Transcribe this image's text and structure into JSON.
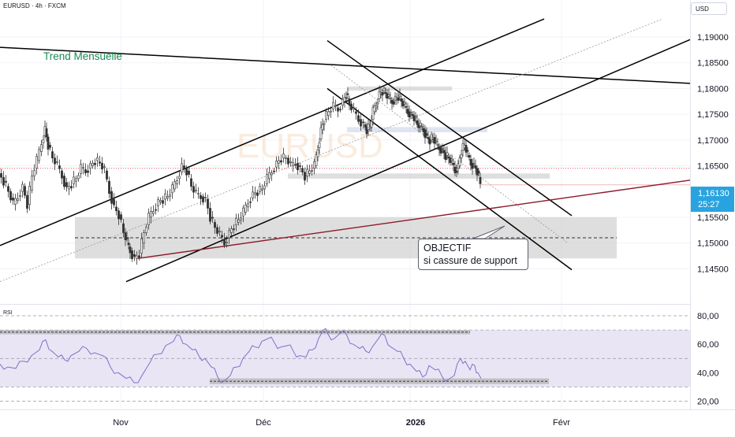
{
  "header": {
    "symbol_title": "EURUSD · 4h · FXCM",
    "currency_button": "USD"
  },
  "price_badge": {
    "price": "1,16130",
    "countdown": "25:27"
  },
  "annotations": {
    "trend_label": "Trend Mensuelle",
    "callout_line1": "OBJECTIF",
    "callout_line2": "si cassure de support",
    "watermark": "EURUSD"
  },
  "rsi_label": "RSI",
  "colors": {
    "candle": "#333333",
    "trend_line": "#000000",
    "support_line": "#8b1a2c",
    "rsi_line": "#7e72c6",
    "rsi_band": "#e9e5f5",
    "zone_fill": "#c8c8c8",
    "badge": "#29a3e0",
    "trend_label": "#1b8a52"
  },
  "chart_data": [
    {
      "type": "candlestick",
      "title": "EURUSD · 4h · FXCM",
      "x_tick_labels": [
        "Nov",
        "Déc",
        "2026",
        "Févr"
      ],
      "y_tick_labels": [
        "1,19000",
        "1,18500",
        "1,18000",
        "1,17500",
        "1,17000",
        "1,16500",
        "1,15500",
        "1,15000",
        "1,14500"
      ],
      "ylim": [
        1.1425,
        1.1935
      ],
      "current_price": 1.1613,
      "price_path": [
        [
          0,
          1.1635
        ],
        [
          6,
          1.162
        ],
        [
          12,
          1.16
        ],
        [
          18,
          1.1575
        ],
        [
          24,
          1.159
        ],
        [
          30,
          1.161
        ],
        [
          36,
          1.1575
        ],
        [
          42,
          1.163
        ],
        [
          48,
          1.166
        ],
        [
          54,
          1.1695
        ],
        [
          58,
          1.1722
        ],
        [
          62,
          1.169
        ],
        [
          68,
          1.1665
        ],
        [
          74,
          1.165
        ],
        [
          80,
          1.163
        ],
        [
          86,
          1.1605
        ],
        [
          92,
          1.1615
        ],
        [
          98,
          1.1625
        ],
        [
          104,
          1.1645
        ],
        [
          110,
          1.164
        ],
        [
          116,
          1.165
        ],
        [
          122,
          1.166
        ],
        [
          128,
          1.1655
        ],
        [
          134,
          1.164
        ],
        [
          140,
          1.16
        ],
        [
          146,
          1.157
        ],
        [
          152,
          1.1555
        ],
        [
          158,
          1.152
        ],
        [
          162,
          1.15
        ],
        [
          166,
          1.1485
        ],
        [
          172,
          1.147
        ],
        [
          178,
          1.148
        ],
        [
          184,
          1.152
        ],
        [
          190,
          1.155
        ],
        [
          196,
          1.1565
        ],
        [
          202,
          1.158
        ],
        [
          208,
          1.1585
        ],
        [
          214,
          1.159
        ],
        [
          220,
          1.1605
        ],
        [
          226,
          1.1625
        ],
        [
          232,
          1.165
        ],
        [
          238,
          1.164
        ],
        [
          244,
          1.161
        ],
        [
          250,
          1.1595
        ],
        [
          256,
          1.159
        ],
        [
          262,
          1.1585
        ],
        [
          268,
          1.155
        ],
        [
          274,
          1.153
        ],
        [
          280,
          1.1515
        ],
        [
          286,
          1.15
        ],
        [
          292,
          1.152
        ],
        [
          298,
          1.1535
        ],
        [
          304,
          1.1545
        ],
        [
          310,
          1.156
        ],
        [
          316,
          1.158
        ],
        [
          322,
          1.1595
        ],
        [
          328,
          1.16
        ],
        [
          334,
          1.1605
        ],
        [
          340,
          1.1625
        ],
        [
          346,
          1.164
        ],
        [
          352,
          1.1655
        ],
        [
          358,
          1.1665
        ],
        [
          364,
          1.1665
        ],
        [
          370,
          1.165
        ],
        [
          376,
          1.1655
        ],
        [
          382,
          1.1645
        ],
        [
          388,
          1.163
        ],
        [
          394,
          1.164
        ],
        [
          400,
          1.165
        ],
        [
          404,
          1.1685
        ],
        [
          408,
          1.172
        ],
        [
          412,
          1.174
        ],
        [
          418,
          1.1755
        ],
        [
          424,
          1.1765
        ],
        [
          430,
          1.176
        ],
        [
          436,
          1.1775
        ],
        [
          440,
          1.179
        ],
        [
          444,
          1.177
        ],
        [
          450,
          1.1755
        ],
        [
          456,
          1.174
        ],
        [
          462,
          1.173
        ],
        [
          466,
          1.172
        ],
        [
          470,
          1.1725
        ],
        [
          474,
          1.1755
        ],
        [
          478,
          1.177
        ],
        [
          482,
          1.179
        ],
        [
          486,
          1.1795
        ],
        [
          490,
          1.179
        ],
        [
          494,
          1.178
        ],
        [
          498,
          1.1775
        ],
        [
          502,
          1.178
        ],
        [
          506,
          1.1785
        ],
        [
          510,
          1.1775
        ],
        [
          514,
          1.1765
        ],
        [
          518,
          1.1755
        ],
        [
          522,
          1.175
        ],
        [
          526,
          1.1745
        ],
        [
          530,
          1.173
        ],
        [
          534,
          1.1725
        ],
        [
          538,
          1.172
        ],
        [
          542,
          1.1705
        ],
        [
          546,
          1.17
        ],
        [
          550,
          1.1705
        ],
        [
          554,
          1.169
        ],
        [
          558,
          1.1685
        ],
        [
          562,
          1.168
        ],
        [
          566,
          1.167
        ],
        [
          570,
          1.1665
        ],
        [
          574,
          1.1655
        ],
        [
          578,
          1.164
        ],
        [
          582,
          1.165
        ],
        [
          586,
          1.168
        ],
        [
          590,
          1.169
        ],
        [
          594,
          1.167
        ],
        [
          598,
          1.1655
        ],
        [
          602,
          1.165
        ],
        [
          606,
          1.164
        ],
        [
          610,
          1.1615
        ]
      ],
      "trend_lines": [
        {
          "name": "Trend Mensuelle",
          "from": [
            0,
            1.188
          ],
          "to": [
            875,
            1.181
          ],
          "color": "#000000"
        },
        {
          "name": "channel-upper",
          "from": [
            0,
            1.1495
          ],
          "to": [
            690,
            1.1935
          ],
          "color": "#000000"
        },
        {
          "name": "channel-lower",
          "from": [
            160,
            1.1425
          ],
          "to": [
            875,
            1.1895
          ],
          "color": "#000000"
        },
        {
          "name": "channel-mid",
          "from": [
            0,
            1.1425
          ],
          "to": [
            840,
            1.1935
          ],
          "color": "#9a9a9a"
        },
        {
          "name": "down-channel-upper",
          "from": [
            415,
            1.1893
          ],
          "to": [
            725,
            1.1553
          ],
          "color": "#000000"
        },
        {
          "name": "down-channel-lower",
          "from": [
            415,
            1.18
          ],
          "to": [
            725,
            1.1448
          ],
          "color": "#000000"
        },
        {
          "name": "down-channel-mid",
          "from": [
            420,
            1.1845
          ],
          "to": [
            720,
            1.15
          ],
          "color": "#9a9a9a"
        },
        {
          "name": "support-trend",
          "from": [
            175,
            1.147
          ],
          "to": [
            875,
            1.1622
          ],
          "color": "#8b1a2c"
        }
      ],
      "zones": [
        {
          "name": "objective-zone",
          "x": [
            95,
            782
          ],
          "y": [
            1.147,
            1.155
          ]
        },
        {
          "name": "high-zone",
          "x": [
            440,
            573
          ],
          "y": [
            1.1796,
            1.1804
          ]
        },
        {
          "name": "mid-zone",
          "x": [
            440,
            618
          ],
          "y": [
            1.1715,
            1.1725
          ]
        },
        {
          "name": "support-zone",
          "x": [
            365,
            697
          ],
          "y": [
            1.1625,
            1.1635
          ]
        }
      ],
      "levels": [
        {
          "name": "objective-level",
          "x": [
            95,
            782
          ],
          "y": 1.151,
          "style": "dashed"
        },
        {
          "name": "resistance-level",
          "x": [
            0,
            875
          ],
          "y": 1.1645,
          "style": "dotted-red"
        },
        {
          "name": "current-price-level",
          "x": [
            610,
            875
          ],
          "y": 1.1613,
          "style": "solid-light"
        }
      ]
    },
    {
      "type": "line",
      "title": "RSI",
      "ylim": [
        20,
        80
      ],
      "y_tick_labels": [
        "80,00",
        "60,00",
        "40,00",
        "20,00"
      ],
      "band": [
        30,
        70
      ],
      "midline": 50,
      "values": [
        [
          0,
          46
        ],
        [
          10,
          44
        ],
        [
          20,
          43
        ],
        [
          30,
          48
        ],
        [
          40,
          52
        ],
        [
          50,
          56
        ],
        [
          58,
          63
        ],
        [
          66,
          55
        ],
        [
          74,
          51
        ],
        [
          82,
          49
        ],
        [
          90,
          52
        ],
        [
          100,
          55
        ],
        [
          110,
          57
        ],
        [
          120,
          54
        ],
        [
          130,
          52
        ],
        [
          140,
          44
        ],
        [
          150,
          40
        ],
        [
          160,
          36
        ],
        [
          170,
          33
        ],
        [
          180,
          38
        ],
        [
          190,
          47
        ],
        [
          200,
          53
        ],
        [
          210,
          59
        ],
        [
          220,
          62
        ],
        [
          228,
          66
        ],
        [
          236,
          60
        ],
        [
          244,
          56
        ],
        [
          252,
          52
        ],
        [
          260,
          50
        ],
        [
          268,
          44
        ],
        [
          276,
          37
        ],
        [
          284,
          34
        ],
        [
          292,
          38
        ],
        [
          300,
          44
        ],
        [
          308,
          50
        ],
        [
          316,
          55
        ],
        [
          324,
          58
        ],
        [
          332,
          62
        ],
        [
          340,
          64
        ],
        [
          348,
          61
        ],
        [
          356,
          58
        ],
        [
          364,
          59
        ],
        [
          372,
          55
        ],
        [
          380,
          52
        ],
        [
          388,
          51
        ],
        [
          396,
          56
        ],
        [
          404,
          64
        ],
        [
          410,
          70
        ],
        [
          416,
          67
        ],
        [
          424,
          64
        ],
        [
          432,
          68
        ],
        [
          440,
          66
        ],
        [
          448,
          60
        ],
        [
          456,
          57
        ],
        [
          464,
          55
        ],
        [
          472,
          58
        ],
        [
          480,
          64
        ],
        [
          488,
          66
        ],
        [
          496,
          58
        ],
        [
          504,
          55
        ],
        [
          512,
          50
        ],
        [
          520,
          46
        ],
        [
          528,
          41
        ],
        [
          536,
          37
        ],
        [
          544,
          45
        ],
        [
          552,
          42
        ],
        [
          560,
          38
        ],
        [
          568,
          35
        ],
        [
          576,
          38
        ],
        [
          584,
          50
        ],
        [
          590,
          48
        ],
        [
          596,
          42
        ],
        [
          602,
          45
        ],
        [
          606,
          40
        ],
        [
          610,
          36
        ]
      ],
      "zones": [
        {
          "name": "rsi-high-zone",
          "x": [
            0,
            596
          ],
          "y": [
            67,
            70
          ]
        },
        {
          "name": "rsi-low-zone",
          "x": [
            266,
            696
          ],
          "y": [
            32,
            36
          ]
        }
      ]
    }
  ]
}
